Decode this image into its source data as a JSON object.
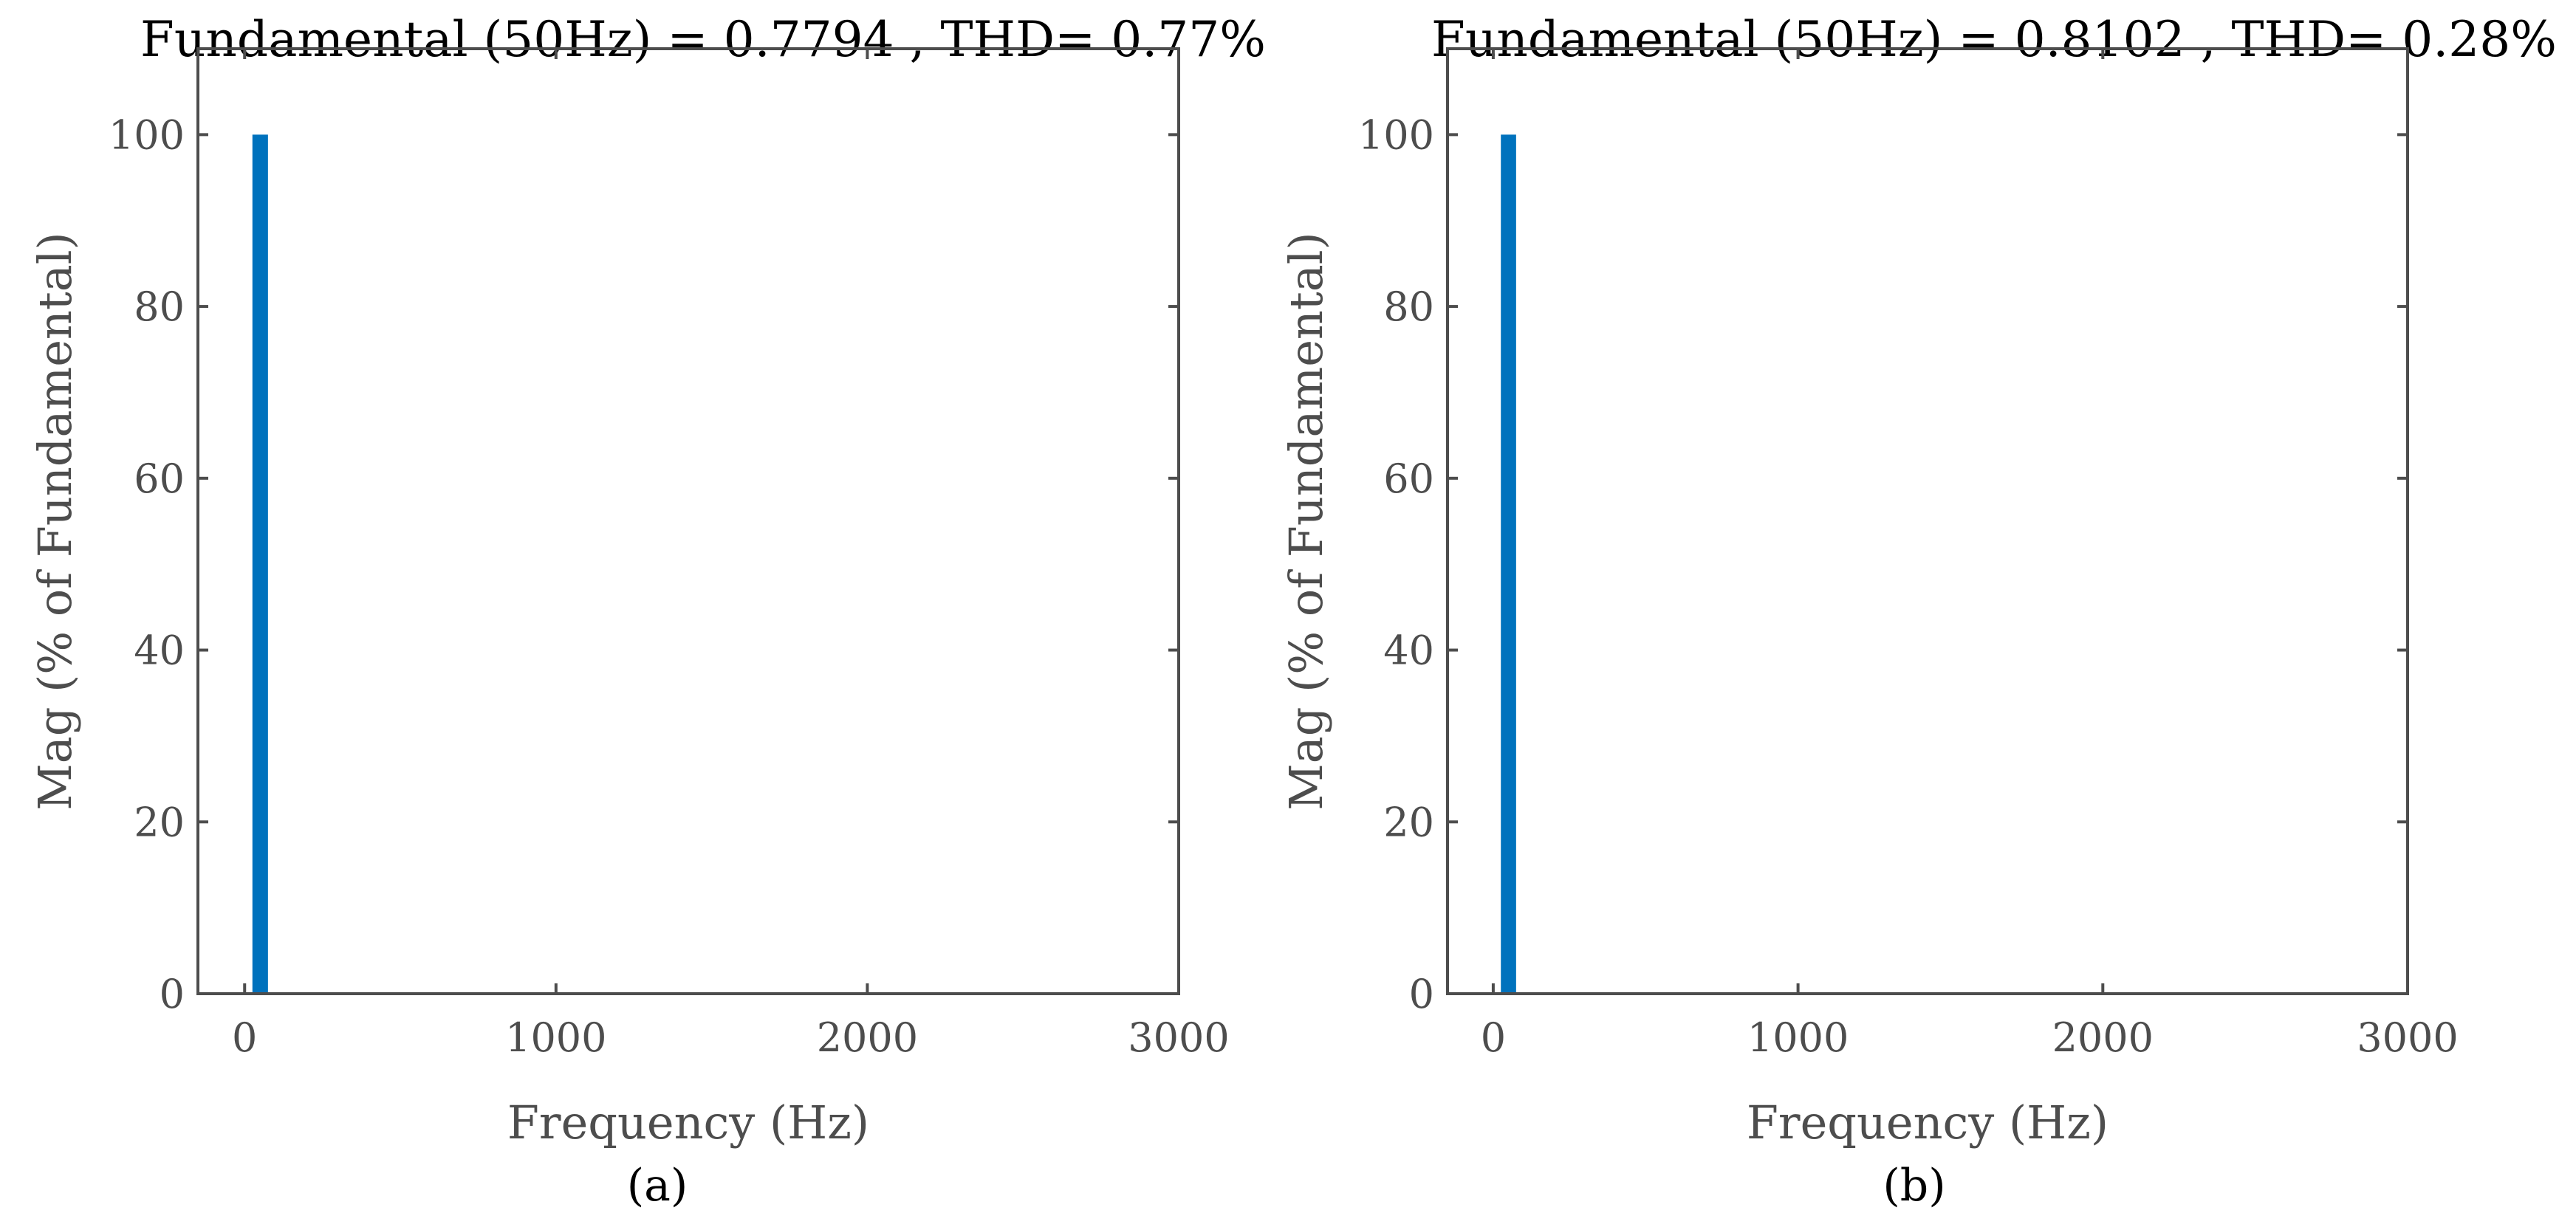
{
  "chart_data": [
    {
      "type": "bar",
      "title": "Fundamental (50Hz) = 0.7794 , THD= 0.77%",
      "xlabel": "Frequency (Hz)",
      "ylabel": "Mag (% of Fundamental)",
      "caption": "(a)",
      "xlim": [
        -150,
        3000
      ],
      "ylim": [
        0,
        110
      ],
      "xticks": [
        0,
        1000,
        2000,
        3000
      ],
      "yticks": [
        0,
        20,
        40,
        60,
        80,
        100
      ],
      "bar_width_hz": 50,
      "bar_color": "#0072bd",
      "x": [
        50
      ],
      "values": [
        100
      ]
    },
    {
      "type": "bar",
      "title": "Fundamental (50Hz) = 0.8102 , THD= 0.28%",
      "xlabel": "Frequency (Hz)",
      "ylabel": "Mag (% of Fundamental)",
      "caption": "(b)",
      "xlim": [
        -150,
        3000
      ],
      "ylim": [
        0,
        110
      ],
      "xticks": [
        0,
        1000,
        2000,
        3000
      ],
      "yticks": [
        0,
        20,
        40,
        60,
        80,
        100
      ],
      "bar_width_hz": 50,
      "bar_color": "#0072bd",
      "x": [
        50
      ],
      "values": [
        100
      ]
    }
  ]
}
